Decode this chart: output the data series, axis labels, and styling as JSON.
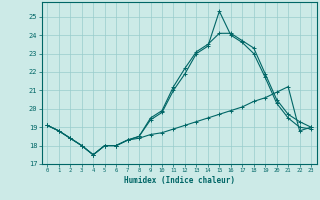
{
  "title": "",
  "xlabel": "Humidex (Indice chaleur)",
  "xlim": [
    -0.5,
    23.5
  ],
  "ylim": [
    17,
    25.8
  ],
  "yticks": [
    17,
    18,
    19,
    20,
    21,
    22,
    23,
    24,
    25
  ],
  "xticks": [
    0,
    1,
    2,
    3,
    4,
    5,
    6,
    7,
    8,
    9,
    10,
    11,
    12,
    13,
    14,
    15,
    16,
    17,
    18,
    19,
    20,
    21,
    22,
    23
  ],
  "bg_color": "#cceae7",
  "grid_color": "#99cccc",
  "line_color": "#006666",
  "series": [
    [
      19.1,
      18.8,
      18.4,
      18.0,
      17.5,
      18.0,
      18.0,
      18.3,
      18.5,
      19.5,
      19.9,
      21.2,
      22.2,
      23.1,
      23.5,
      24.1,
      24.1,
      23.7,
      23.3,
      21.9,
      20.5,
      19.7,
      19.3,
      19.0
    ],
    [
      19.1,
      18.8,
      18.4,
      18.0,
      17.5,
      18.0,
      18.0,
      18.3,
      18.5,
      19.4,
      19.8,
      21.0,
      21.9,
      23.0,
      23.4,
      25.3,
      24.0,
      23.6,
      23.0,
      21.7,
      20.3,
      19.5,
      19.0,
      18.9
    ],
    [
      19.1,
      18.8,
      18.4,
      18.0,
      17.5,
      18.0,
      18.0,
      18.3,
      18.4,
      18.6,
      18.7,
      18.9,
      19.1,
      19.3,
      19.5,
      19.7,
      19.9,
      20.1,
      20.4,
      20.6,
      20.9,
      21.2,
      18.8,
      19.0
    ]
  ]
}
